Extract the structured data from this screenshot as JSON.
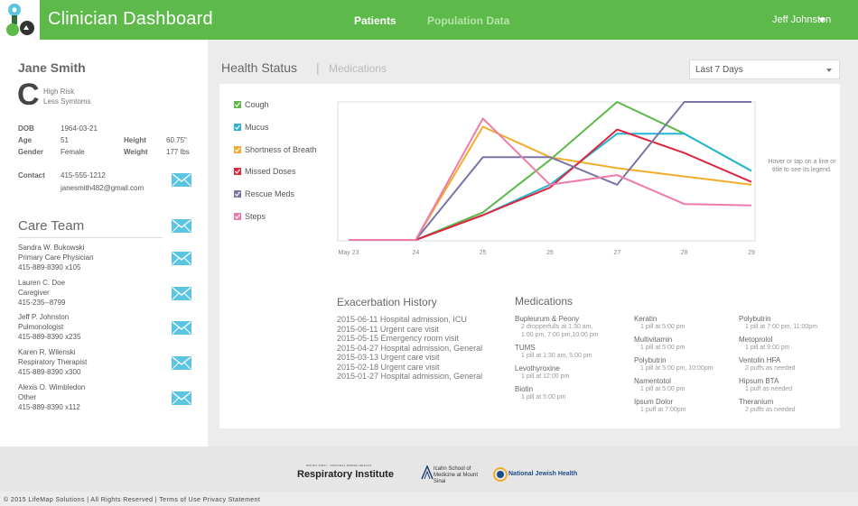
{
  "header": {
    "app_title": "Clinician Dashboard",
    "tabs": [
      {
        "label": "Patients"
      },
      {
        "label": "Population Data"
      }
    ],
    "user": "Jeff Johnston",
    "brand_color": "#5cb94a"
  },
  "patient": {
    "name": "Jane Smith",
    "risk_grade": "C",
    "risk_level": "High Risk",
    "symptom_trend": "Less Symtoms",
    "labels": {
      "dob": "DOB",
      "age": "Age",
      "gender": "Gender",
      "height": "Height",
      "weight": "Weight",
      "contact": "Contact"
    },
    "dob": "1964-03-21",
    "age": "51",
    "gender": "Female",
    "height": "60.75\"",
    "weight": "177 lbs",
    "phone": "415-555-1212",
    "email": "janesmith482@gmail.com"
  },
  "care_team": {
    "title": "Care Team",
    "members": [
      {
        "name": "Sandra W. Bukowski",
        "role": "Primary Care Physician",
        "phone": "415-889-8390 x105"
      },
      {
        "name": "Lauren C. Doe",
        "role": "Caregiver",
        "phone": "415-235--8799"
      },
      {
        "name": "Jeff P. Johnston",
        "role": "Pulmonologist",
        "phone": "415-889-8390 x235"
      },
      {
        "name": "Karen R. Wilenski",
        "role": "Respiratory Therapist",
        "phone": "415-889-8390 x300"
      },
      {
        "name": "Alexis O. Wimbledon",
        "role": "Other",
        "phone": "415-889-8390 x112"
      }
    ]
  },
  "main": {
    "tab_active": "Health Status",
    "tab_separator": "|",
    "tab_inactive": "Medications",
    "range": "Last 7 Days",
    "hint": "Hover or tap on a line or title to see its legend."
  },
  "chart_data": {
    "type": "line",
    "x": [
      "May 23",
      "24",
      "25",
      "26",
      "27",
      "28",
      "29"
    ],
    "ylim": [
      0,
      100
    ],
    "grid": false,
    "legend": "left",
    "series": [
      {
        "name": "Cough",
        "color": "#5cb94a",
        "values": [
          0,
          0,
          20,
          58,
          100,
          77,
          50
        ]
      },
      {
        "name": "Mucus",
        "color": "#23b5d3",
        "values": [
          0,
          0,
          18,
          40,
          77,
          77,
          50
        ]
      },
      {
        "name": "Shortness of Breath",
        "color": "#f0ad2a",
        "values": [
          0,
          0,
          82,
          60,
          52,
          46,
          40
        ]
      },
      {
        "name": "Missed Doses",
        "color": "#e0243c",
        "values": [
          0,
          0,
          18,
          38,
          80,
          63,
          42
        ]
      },
      {
        "name": "Rescue Meds",
        "color": "#7a74a6",
        "values": [
          0,
          0,
          60,
          60,
          40,
          100,
          100
        ]
      },
      {
        "name": "Steps",
        "color": "#ee7bab",
        "values": [
          0,
          0,
          88,
          40,
          47,
          26,
          25
        ]
      }
    ]
  },
  "history": {
    "title": "Exacerbation History",
    "events": [
      "2015-06-11 Hospital admission, ICU",
      "2015-06-11 Urgent care visit",
      "2015-05-15 Emergency room visit",
      "2015-04-27 Hospital admission, General",
      "2015-03-13 Urgent care visit",
      "2015-02-18 Urgent care visit",
      "2015-01-27 Hospital admission, General"
    ]
  },
  "medications": {
    "title": "Medications",
    "columns": [
      [
        {
          "name": "Bupleurum & Peony",
          "dose": [
            "2 dropperfulls at 1:30 am,",
            "1:00 pm, 7:00 pm,10:00 pm"
          ]
        },
        {
          "name": "TUMS",
          "dose": [
            "1 pill at 1:30 am, 5:00 pm"
          ]
        },
        {
          "name": "Levothyroxine",
          "dose": [
            "1 pill at 12:00 pm"
          ]
        },
        {
          "name": "Biotin",
          "dose": [
            "1 pill at 5:00 pm"
          ]
        }
      ],
      [
        {
          "name": "Keratin",
          "dose": [
            "1 pill at 5:00 pm"
          ]
        },
        {
          "name": "Multivitamin",
          "dose": [
            "1 pill at 5:00 pm"
          ]
        },
        {
          "name": "Polybutrin",
          "dose": [
            "1 pill at 5:00 pm, 10:00pm"
          ]
        },
        {
          "name": "Namentotol",
          "dose": [
            "1 pill at 5:00 pm"
          ]
        },
        {
          "name": "Ipsum Dolor",
          "dose": [
            "1 puff at 7:00pm"
          ]
        }
      ],
      [
        {
          "name": "Polybutrin",
          "dose": [
            "1 pill at 7:00 pm, 11:00pm"
          ]
        },
        {
          "name": "Metoprolol",
          "dose": [
            "1 pill at 9:00 pm"
          ]
        },
        {
          "name": "Ventolin HFA",
          "dose": [
            "2 puffs as needed"
          ]
        },
        {
          "name": "Hipsum BTA",
          "dose": [
            "1 puff as needed"
          ]
        },
        {
          "name": "Theranium",
          "dose": [
            "2 puffs as needed"
          ]
        }
      ]
    ]
  },
  "footer": {
    "resp_top": "MOUNT SINAI · NATIONAL JEWISH HEALTH",
    "resp_inst": "Respiratory Institute",
    "sinai": "Icahn School of Medicine at Mount Sinai",
    "njh": "National Jewish Health",
    "copyright": "© 2015 LifeMap Solutions | All Rights Reserved | ",
    "terms": "Terms of Use",
    "privacy": "Privacy Statement"
  }
}
